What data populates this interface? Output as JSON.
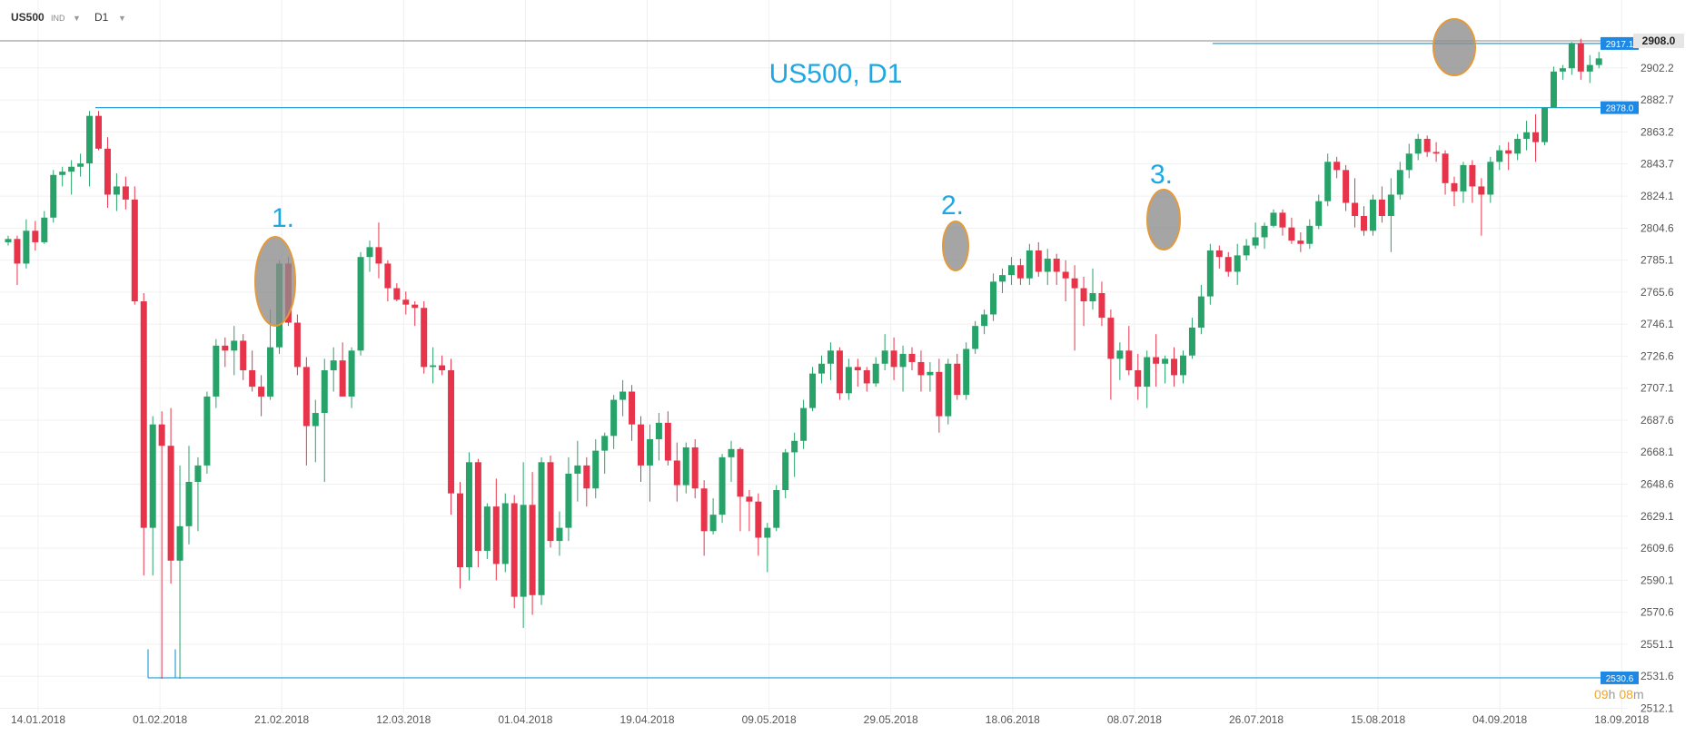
{
  "toolbar": {
    "symbol": "US500",
    "market_tag": "IND",
    "timeframe": "D1"
  },
  "colors": {
    "up": "#27a36a",
    "down": "#e8344a",
    "annotation": "#1ea7e1",
    "level_line": "#2a9fd8",
    "label_bg": "#1e88e5",
    "price_bg": "#e6e6e6",
    "ellipse_fill": "#8c8c8c",
    "ellipse_stroke": "#e39a3b",
    "timer": "#f5a623"
  },
  "chart_data": {
    "type": "candlestick",
    "title": "US500, D1",
    "y_axis": {
      "ticks": [
        2512.1,
        2531.6,
        2551.1,
        2570.6,
        2590.1,
        2609.6,
        2629.1,
        2648.6,
        2668.1,
        2687.6,
        2707.1,
        2726.6,
        2746.1,
        2765.6,
        2785.1,
        2804.6,
        2824.1,
        2843.7,
        2863.2,
        2882.7,
        2902.2
      ],
      "range": [
        2509,
        2927
      ]
    },
    "x_axis": {
      "labels": [
        "14.01.2018",
        "01.02.2018",
        "21.02.2018",
        "12.03.2018",
        "01.04.2018",
        "19.04.2018",
        "09.05.2018",
        "29.05.2018",
        "18.06.2018",
        "08.07.2018",
        "26.07.2018",
        "15.08.2018",
        "04.09.2018",
        "18.09.2018"
      ]
    },
    "current_price": 2908.0,
    "levels": [
      2917.1,
      2878.0,
      2530.6
    ],
    "annotations": [
      "1.",
      "2.",
      "3."
    ],
    "countdown": {
      "hours": "09",
      "h_unit": "h",
      "minutes": "08",
      "m_unit": "m"
    },
    "candles": [
      [
        2796,
        2800,
        2794,
        2798
      ],
      [
        2798,
        2800,
        2770,
        2783
      ],
      [
        2783,
        2810,
        2780,
        2803
      ],
      [
        2803,
        2809,
        2791,
        2796
      ],
      [
        2796,
        2815,
        2795,
        2811
      ],
      [
        2811,
        2840,
        2808,
        2837
      ],
      [
        2837,
        2842,
        2830,
        2839
      ],
      [
        2839,
        2846,
        2825,
        2842
      ],
      [
        2842,
        2850,
        2836,
        2844
      ],
      [
        2844,
        2876,
        2830,
        2873
      ],
      [
        2873,
        2876,
        2852,
        2853
      ],
      [
        2853,
        2860,
        2817,
        2825
      ],
      [
        2825,
        2838,
        2815,
        2830
      ],
      [
        2830,
        2836,
        2816,
        2822
      ],
      [
        2822,
        2830,
        2758,
        2760
      ],
      [
        2760,
        2765,
        2593,
        2622
      ],
      [
        2622,
        2690,
        2593,
        2685
      ],
      [
        2685,
        2693,
        2530,
        2672
      ],
      [
        2672,
        2695,
        2588,
        2602
      ],
      [
        2602,
        2660,
        2530,
        2623
      ],
      [
        2623,
        2672,
        2612,
        2650
      ],
      [
        2650,
        2665,
        2620,
        2660
      ],
      [
        2660,
        2705,
        2655,
        2702
      ],
      [
        2702,
        2737,
        2695,
        2733
      ],
      [
        2733,
        2738,
        2720,
        2730
      ],
      [
        2730,
        2745,
        2715,
        2736
      ],
      [
        2736,
        2740,
        2712,
        2718
      ],
      [
        2718,
        2730,
        2705,
        2708
      ],
      [
        2708,
        2715,
        2690,
        2702
      ],
      [
        2702,
        2755,
        2700,
        2732
      ],
      [
        2732,
        2785,
        2728,
        2783
      ],
      [
        2783,
        2787,
        2745,
        2747
      ],
      [
        2747,
        2752,
        2715,
        2720
      ],
      [
        2720,
        2726,
        2660,
        2684
      ],
      [
        2684,
        2700,
        2662,
        2692
      ],
      [
        2692,
        2725,
        2650,
        2718
      ],
      [
        2718,
        2732,
        2705,
        2724
      ],
      [
        2724,
        2735,
        2702,
        2702
      ],
      [
        2702,
        2732,
        2695,
        2730
      ],
      [
        2730,
        2790,
        2727,
        2787
      ],
      [
        2787,
        2797,
        2778,
        2793
      ],
      [
        2793,
        2808,
        2774,
        2783
      ],
      [
        2783,
        2785,
        2760,
        2768
      ],
      [
        2768,
        2771,
        2760,
        2761
      ],
      [
        2761,
        2766,
        2752,
        2758
      ],
      [
        2758,
        2760,
        2745,
        2756
      ],
      [
        2756,
        2760,
        2716,
        2720
      ],
      [
        2720,
        2732,
        2710,
        2721
      ],
      [
        2721,
        2727,
        2715,
        2718
      ],
      [
        2718,
        2725,
        2630,
        2643
      ],
      [
        2643,
        2650,
        2585,
        2598
      ],
      [
        2598,
        2668,
        2590,
        2662
      ],
      [
        2662,
        2664,
        2598,
        2608
      ],
      [
        2608,
        2637,
        2603,
        2635
      ],
      [
        2635,
        2652,
        2590,
        2600
      ],
      [
        2600,
        2643,
        2595,
        2637
      ],
      [
        2637,
        2642,
        2573,
        2580
      ],
      [
        2580,
        2662,
        2561,
        2636
      ],
      [
        2636,
        2656,
        2569,
        2581
      ],
      [
        2581,
        2665,
        2575,
        2662
      ],
      [
        2662,
        2666,
        2610,
        2614
      ],
      [
        2614,
        2632,
        2605,
        2622
      ],
      [
        2622,
        2665,
        2614,
        2655
      ],
      [
        2655,
        2675,
        2638,
        2660
      ],
      [
        2660,
        2665,
        2635,
        2646
      ],
      [
        2646,
        2676,
        2640,
        2669
      ],
      [
        2669,
        2680,
        2655,
        2678
      ],
      [
        2678,
        2703,
        2670,
        2700
      ],
      [
        2700,
        2712,
        2690,
        2705
      ],
      [
        2705,
        2709,
        2675,
        2685
      ],
      [
        2685,
        2690,
        2650,
        2660
      ],
      [
        2660,
        2685,
        2638,
        2676
      ],
      [
        2676,
        2692,
        2663,
        2686
      ],
      [
        2686,
        2693,
        2660,
        2663
      ],
      [
        2663,
        2674,
        2638,
        2648
      ],
      [
        2648,
        2674,
        2643,
        2671
      ],
      [
        2671,
        2676,
        2640,
        2646
      ],
      [
        2646,
        2651,
        2605,
        2620
      ],
      [
        2620,
        2640,
        2618,
        2630
      ],
      [
        2630,
        2667,
        2625,
        2665
      ],
      [
        2665,
        2675,
        2650,
        2670
      ],
      [
        2670,
        2671,
        2620,
        2641
      ],
      [
        2641,
        2645,
        2620,
        2638
      ],
      [
        2638,
        2643,
        2605,
        2616
      ],
      [
        2616,
        2625,
        2595,
        2622
      ],
      [
        2622,
        2648,
        2620,
        2645
      ],
      [
        2645,
        2670,
        2640,
        2668
      ],
      [
        2668,
        2680,
        2653,
        2675
      ],
      [
        2675,
        2700,
        2670,
        2695
      ],
      [
        2695,
        2720,
        2693,
        2716
      ],
      [
        2716,
        2727,
        2710,
        2722
      ],
      [
        2722,
        2735,
        2712,
        2730
      ],
      [
        2730,
        2732,
        2700,
        2704
      ],
      [
        2704,
        2725,
        2700,
        2720
      ],
      [
        2720,
        2725,
        2708,
        2718
      ],
      [
        2718,
        2720,
        2705,
        2710
      ],
      [
        2710,
        2726,
        2708,
        2722
      ],
      [
        2722,
        2740,
        2718,
        2730
      ],
      [
        2730,
        2738,
        2712,
        2720
      ],
      [
        2720,
        2733,
        2705,
        2728
      ],
      [
        2728,
        2732,
        2718,
        2723
      ],
      [
        2723,
        2730,
        2705,
        2715
      ],
      [
        2715,
        2723,
        2705,
        2717
      ],
      [
        2717,
        2725,
        2680,
        2690
      ],
      [
        2690,
        2725,
        2685,
        2722
      ],
      [
        2722,
        2728,
        2700,
        2703
      ],
      [
        2703,
        2735,
        2700,
        2731
      ],
      [
        2731,
        2748,
        2728,
        2745
      ],
      [
        2745,
        2755,
        2740,
        2752
      ],
      [
        2752,
        2777,
        2748,
        2772
      ],
      [
        2772,
        2780,
        2765,
        2776
      ],
      [
        2776,
        2787,
        2770,
        2782
      ],
      [
        2782,
        2786,
        2770,
        2774
      ],
      [
        2774,
        2795,
        2770,
        2791
      ],
      [
        2791,
        2796,
        2775,
        2778
      ],
      [
        2778,
        2792,
        2770,
        2786
      ],
      [
        2786,
        2789,
        2770,
        2778
      ],
      [
        2778,
        2785,
        2760,
        2774
      ],
      [
        2774,
        2782,
        2730,
        2768
      ],
      [
        2768,
        2775,
        2745,
        2760
      ],
      [
        2760,
        2780,
        2755,
        2765
      ],
      [
        2765,
        2772,
        2745,
        2750
      ],
      [
        2750,
        2755,
        2700,
        2725
      ],
      [
        2725,
        2735,
        2712,
        2730
      ],
      [
        2730,
        2745,
        2715,
        2718
      ],
      [
        2718,
        2728,
        2700,
        2708
      ],
      [
        2708,
        2730,
        2695,
        2726
      ],
      [
        2726,
        2740,
        2708,
        2722
      ],
      [
        2722,
        2727,
        2710,
        2725
      ],
      [
        2725,
        2732,
        2708,
        2715
      ],
      [
        2715,
        2730,
        2710,
        2727
      ],
      [
        2727,
        2750,
        2725,
        2744
      ],
      [
        2744,
        2770,
        2740,
        2763
      ],
      [
        2763,
        2795,
        2758,
        2791
      ],
      [
        2791,
        2794,
        2780,
        2787
      ],
      [
        2787,
        2790,
        2775,
        2778
      ],
      [
        2778,
        2795,
        2770,
        2788
      ],
      [
        2788,
        2798,
        2785,
        2794
      ],
      [
        2794,
        2808,
        2792,
        2799
      ],
      [
        2799,
        2808,
        2792,
        2806
      ],
      [
        2806,
        2816,
        2805,
        2814
      ],
      [
        2814,
        2816,
        2800,
        2805
      ],
      [
        2805,
        2811,
        2795,
        2797
      ],
      [
        2797,
        2802,
        2790,
        2795
      ],
      [
        2795,
        2810,
        2792,
        2806
      ],
      [
        2806,
        2825,
        2804,
        2821
      ],
      [
        2821,
        2850,
        2818,
        2845
      ],
      [
        2845,
        2848,
        2835,
        2840
      ],
      [
        2840,
        2843,
        2815,
        2820
      ],
      [
        2820,
        2835,
        2805,
        2812
      ],
      [
        2812,
        2818,
        2800,
        2803
      ],
      [
        2803,
        2825,
        2800,
        2822
      ],
      [
        2822,
        2830,
        2808,
        2812
      ],
      [
        2812,
        2835,
        2790,
        2825
      ],
      [
        2825,
        2845,
        2822,
        2840
      ],
      [
        2840,
        2856,
        2835,
        2850
      ],
      [
        2850,
        2862,
        2846,
        2859
      ],
      [
        2859,
        2861,
        2848,
        2851
      ],
      [
        2851,
        2857,
        2845,
        2850
      ],
      [
        2850,
        2852,
        2825,
        2832
      ],
      [
        2832,
        2836,
        2818,
        2827
      ],
      [
        2827,
        2845,
        2820,
        2843
      ],
      [
        2843,
        2846,
        2820,
        2830
      ],
      [
        2830,
        2835,
        2800,
        2825
      ],
      [
        2825,
        2848,
        2820,
        2845
      ],
      [
        2845,
        2855,
        2840,
        2852
      ],
      [
        2852,
        2857,
        2840,
        2850
      ],
      [
        2850,
        2862,
        2846,
        2859
      ],
      [
        2859,
        2870,
        2852,
        2863
      ],
      [
        2863,
        2874,
        2845,
        2857
      ],
      [
        2857,
        2878,
        2855,
        2878
      ],
      [
        2878,
        2903,
        2878,
        2900
      ],
      [
        2900,
        2904,
        2895,
        2902
      ],
      [
        2902,
        2918,
        2898,
        2917
      ],
      [
        2917,
        2920,
        2895,
        2900
      ],
      [
        2900,
        2910,
        2893,
        2904
      ],
      [
        2904,
        2912,
        2902,
        2908
      ]
    ]
  }
}
